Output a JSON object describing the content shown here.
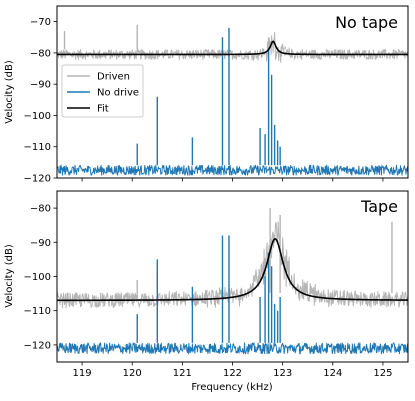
{
  "chart_data": [
    {
      "type": "line",
      "title": "No tape",
      "xlabel": "",
      "ylabel": "Velocity (dB)",
      "xlim": [
        118.5,
        125.5
      ],
      "ylim": [
        -120,
        -65
      ],
      "xticks": [
        119,
        120,
        121,
        122,
        123,
        124,
        125
      ],
      "yticks": [
        -120,
        -110,
        -100,
        -90,
        -80,
        -70
      ],
      "grid": false,
      "legend": {
        "placement": "upper-left",
        "entries": [
          {
            "label": "Driven",
            "color": "#b5b5b5"
          },
          {
            "label": "No drive",
            "color": "#1f77b4"
          },
          {
            "label": "Fit",
            "color": "#000000"
          }
        ]
      },
      "series": [
        {
          "name": "Driven",
          "color": "#b5b5b5",
          "noise_floor": -80.5,
          "noise_spread": 1.6,
          "resonance": {
            "center": 122.81,
            "peak": -76.5,
            "half_width": 0.07
          },
          "spikes": [
            {
              "x": 118.65,
              "y": -73
            },
            {
              "x": 120.1,
              "y": -71
            },
            {
              "x": 122.72,
              "y": -75
            },
            {
              "x": 123.05,
              "y": -78
            }
          ]
        },
        {
          "name": "No drive",
          "color": "#1f77b4",
          "noise_floor": -117.5,
          "noise_spread": 1.6,
          "spikes": [
            {
              "x": 120.1,
              "y": -109
            },
            {
              "x": 120.5,
              "y": -94
            },
            {
              "x": 121.2,
              "y": -107
            },
            {
              "x": 121.8,
              "y": -75
            },
            {
              "x": 121.93,
              "y": -72
            },
            {
              "x": 122.55,
              "y": -104
            },
            {
              "x": 122.65,
              "y": -106
            },
            {
              "x": 122.72,
              "y": -79
            },
            {
              "x": 122.78,
              "y": -87
            },
            {
              "x": 122.84,
              "y": -103
            },
            {
              "x": 122.9,
              "y": -108
            },
            {
              "x": 122.95,
              "y": -110
            }
          ]
        },
        {
          "name": "Fit",
          "color": "#000000",
          "model": "lorentzian",
          "baseline": -80.5,
          "center": 122.81,
          "peak": -76.3,
          "half_width": 0.07
        }
      ]
    },
    {
      "type": "line",
      "title": "Tape",
      "xlabel": "Frequency (kHz)",
      "ylabel": "Velocity (dB)",
      "xlim": [
        118.5,
        125.5
      ],
      "ylim": [
        -125,
        -75
      ],
      "xticks": [
        119,
        120,
        121,
        122,
        123,
        124,
        125
      ],
      "xtick_labels": [
        "119",
        "120",
        "121",
        "122",
        "123",
        "124",
        "125"
      ],
      "yticks": [
        -120,
        -110,
        -100,
        -90,
        -80
      ],
      "grid": false,
      "series": [
        {
          "name": "Driven",
          "color": "#b5b5b5",
          "noise_floor": -107,
          "noise_spread": 2.2,
          "resonance": {
            "center": 122.85,
            "peak": -89,
            "half_width": 0.25
          },
          "spikes": [
            {
              "x": 120.1,
              "y": -101
            },
            {
              "x": 120.5,
              "y": -99
            },
            {
              "x": 122.75,
              "y": -80
            },
            {
              "x": 122.95,
              "y": -82
            },
            {
              "x": 125.18,
              "y": -84
            }
          ]
        },
        {
          "name": "No drive",
          "color": "#1f77b4",
          "noise_floor": -121,
          "noise_spread": 1.6,
          "spikes": [
            {
              "x": 120.1,
              "y": -111
            },
            {
              "x": 120.5,
              "y": -95
            },
            {
              "x": 121.2,
              "y": -103
            },
            {
              "x": 121.8,
              "y": -88
            },
            {
              "x": 121.93,
              "y": -88
            },
            {
              "x": 122.55,
              "y": -106
            },
            {
              "x": 122.65,
              "y": -100
            },
            {
              "x": 122.72,
              "y": -93
            },
            {
              "x": 122.78,
              "y": -97
            },
            {
              "x": 122.84,
              "y": -108
            },
            {
              "x": 122.9,
              "y": -110
            },
            {
              "x": 122.95,
              "y": -106
            }
          ]
        },
        {
          "name": "Fit",
          "color": "#000000",
          "model": "lorentzian",
          "baseline": -107,
          "center": 122.85,
          "peak": -89,
          "half_width": 0.2
        }
      ]
    }
  ]
}
